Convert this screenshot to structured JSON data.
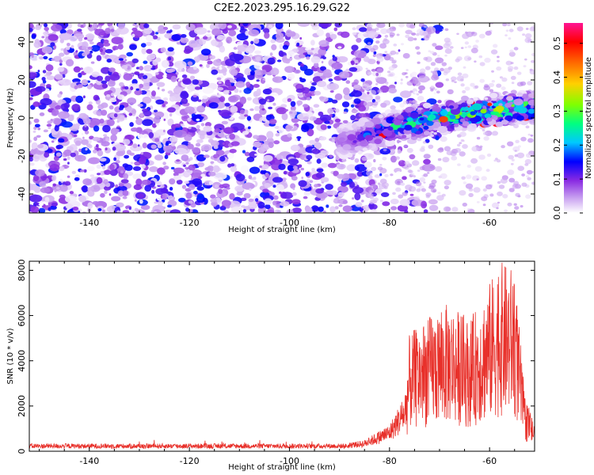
{
  "title": "C2E2.2023.295.16.29.G22",
  "chart_data": [
    {
      "type": "heatmap",
      "xlabel": "Height of straight line (km)",
      "ylabel": "Frequency (Hz)",
      "xlim": [
        -152,
        -51
      ],
      "ylim": [
        -50,
        50
      ],
      "xticks": [
        -140,
        -120,
        -100,
        -80,
        -60
      ],
      "yticks": [
        -40,
        -20,
        0,
        20,
        40
      ],
      "colorbar": {
        "label": "Normalized spectral amplitude",
        "range": [
          0,
          0.56
        ],
        "ticks": [
          "0.0",
          "0.1",
          "0.2",
          "0.3",
          "0.4",
          "0.5"
        ],
        "tick_values": [
          0,
          0.1,
          0.2,
          0.3,
          0.4,
          0.5
        ],
        "colors": [
          "#ffffff",
          "#c8a0f0",
          "#8a2be2",
          "#0000ff",
          "#00c8ff",
          "#00ff80",
          "#80ff00",
          "#ffd000",
          "#ff6000",
          "#ff0000",
          "#ff1493"
        ]
      },
      "description_signal": {
        "noise_region_x": [
          -152,
          -82
        ],
        "noise_level": 0.1,
        "signal_track": [
          {
            "x": -88,
            "freq": -12
          },
          {
            "x": -80,
            "freq": -5
          },
          {
            "x": -75,
            "freq": -2
          },
          {
            "x": -70,
            "freq": 0
          },
          {
            "x": -65,
            "freq": 2
          },
          {
            "x": -60,
            "freq": 3
          },
          {
            "x": -55,
            "freq": 5
          },
          {
            "x": -51,
            "freq": 6
          }
        ],
        "peak_amplitude": 0.56
      }
    },
    {
      "type": "line",
      "xlabel": "Height of straight line (km)",
      "ylabel": "SNR (10 * v/v)",
      "xlim": [
        -152,
        -51
      ],
      "ylim": [
        0,
        8400
      ],
      "xticks": [
        -140,
        -120,
        -100,
        -80,
        -60
      ],
      "yticks": [
        0,
        2000,
        4000,
        6000,
        8000
      ],
      "line_color": "#e8302a",
      "series": [
        {
          "envelope": [
            {
              "x": -152,
              "y": 250
            },
            {
              "x": -140,
              "y": 250
            },
            {
              "x": -120,
              "y": 250
            },
            {
              "x": -100,
              "y": 250
            },
            {
              "x": -90,
              "y": 300
            },
            {
              "x": -85,
              "y": 500
            },
            {
              "x": -80,
              "y": 1200
            },
            {
              "x": -77,
              "y": 2500
            },
            {
              "x": -76,
              "y": 5200
            },
            {
              "x": -72,
              "y": 6000
            },
            {
              "x": -68,
              "y": 6600
            },
            {
              "x": -64,
              "y": 5800
            },
            {
              "x": -61,
              "y": 7000
            },
            {
              "x": -58,
              "y": 8400
            },
            {
              "x": -55,
              "y": 8100
            },
            {
              "x": -53,
              "y": 2500
            },
            {
              "x": -51,
              "y": 1200
            }
          ]
        }
      ]
    }
  ]
}
